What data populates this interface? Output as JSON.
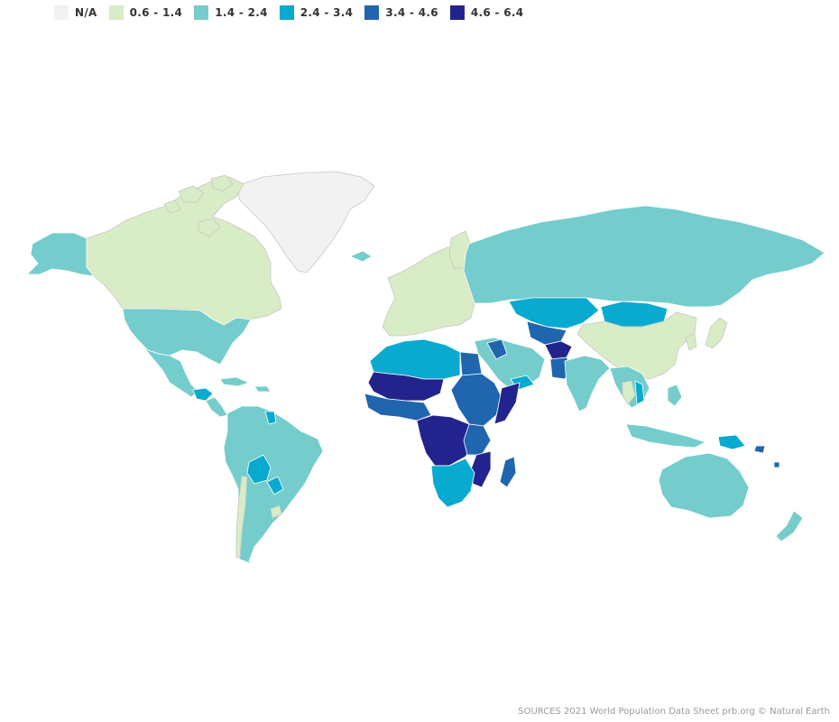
{
  "legend": {
    "items": [
      {
        "label": "N/A",
        "color": "#f2f2f2"
      },
      {
        "label": "0.6 - 1.4",
        "color": "#d8ecc6"
      },
      {
        "label": "1.4 - 2.4",
        "color": "#74cdcc"
      },
      {
        "label": "2.4 - 3.4",
        "color": "#08aacf"
      },
      {
        "label": "3.4 - 4.6",
        "color": "#2066ae"
      },
      {
        "label": "4.6 - 6.4",
        "color": "#23238d"
      }
    ]
  },
  "source": "SOURCES 2021 World Population Data Sheet prb.org © Natural Earth",
  "regions": [
    {
      "name": "Greenland",
      "class": 0
    },
    {
      "name": "Canada",
      "class": 1
    },
    {
      "name": "Alaska",
      "class": 2
    },
    {
      "name": "United States",
      "class": 2
    },
    {
      "name": "Mexico",
      "class": 2
    },
    {
      "name": "Guatemala",
      "class": 3
    },
    {
      "name": "South America",
      "class": 2
    },
    {
      "name": "Bolivia",
      "class": 3
    },
    {
      "name": "Paraguay",
      "class": 3
    },
    {
      "name": "Chile",
      "class": 1
    },
    {
      "name": "Uruguay",
      "class": 1
    },
    {
      "name": "Guyana",
      "class": 3
    },
    {
      "name": "Europe",
      "class": 1
    },
    {
      "name": "Russia",
      "class": 2
    },
    {
      "name": "Kazakhstan",
      "class": 3
    },
    {
      "name": "Mongolia",
      "class": 3
    },
    {
      "name": "China",
      "class": 1
    },
    {
      "name": "Japan",
      "class": 1
    },
    {
      "name": "Korea",
      "class": 1
    },
    {
      "name": "Middle East",
      "class": 2
    },
    {
      "name": "Iraq",
      "class": 4
    },
    {
      "name": "Central Asia",
      "class": 4
    },
    {
      "name": "Afghanistan",
      "class": 5
    },
    {
      "name": "Pakistan",
      "class": 4
    },
    {
      "name": "India",
      "class": 2
    },
    {
      "name": "Southeast Asia",
      "class": 2
    },
    {
      "name": "Thailand",
      "class": 1
    },
    {
      "name": "Laos",
      "class": 3
    },
    {
      "name": "Indonesia",
      "class": 2
    },
    {
      "name": "Philippines",
      "class": 2
    },
    {
      "name": "Papua New Guinea",
      "class": 3
    },
    {
      "name": "Solomon Islands",
      "class": 4
    },
    {
      "name": "Australia",
      "class": 2
    },
    {
      "name": "New Zealand",
      "class": 2
    },
    {
      "name": "North Africa",
      "class": 3
    },
    {
      "name": "Egypt",
      "class": 4
    },
    {
      "name": "Yemen",
      "class": 3
    },
    {
      "name": "Sahel",
      "class": 5
    },
    {
      "name": "West Africa",
      "class": 4
    },
    {
      "name": "East Africa",
      "class": 4
    },
    {
      "name": "Somalia",
      "class": 5
    },
    {
      "name": "Central Africa",
      "class": 5
    },
    {
      "name": "Tanzania",
      "class": 4
    },
    {
      "name": "Mozambique",
      "class": 5
    },
    {
      "name": "Southern Africa",
      "class": 3
    },
    {
      "name": "Madagascar",
      "class": 4
    },
    {
      "name": "Caribbean",
      "class": 2
    },
    {
      "name": "Iceland",
      "class": 2
    },
    {
      "name": "Finland",
      "class": 1
    }
  ]
}
